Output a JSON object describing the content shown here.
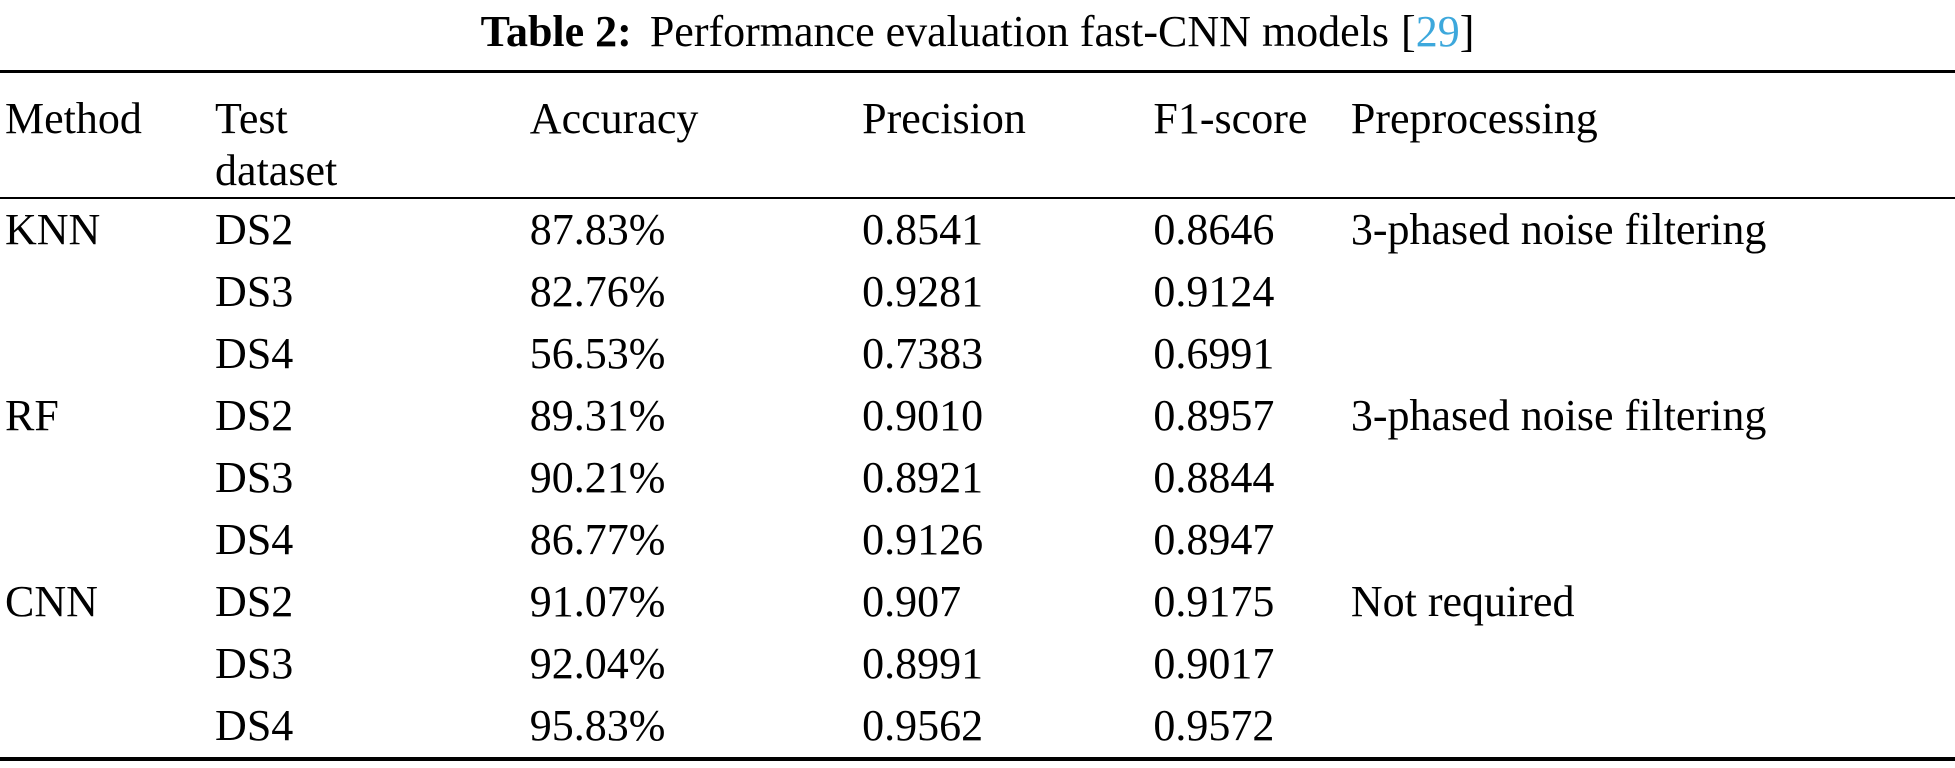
{
  "page": {
    "background": "#ffffff",
    "text_color": "#000000",
    "citation_link_color": "#3da8dc"
  },
  "caption": {
    "label": "Table 2:",
    "text": "Performance evaluation fast-CNN models",
    "citation_bracket_open": "[",
    "citation_number": "29",
    "citation_bracket_close": "]"
  },
  "table": {
    "headers": {
      "method": "Method",
      "dataset_line1": "Test",
      "dataset_line2": "dataset",
      "accuracy": "Accuracy",
      "precision": "Precision",
      "f1": "F1-score",
      "preprocessing": "Preprocessing"
    },
    "rows": [
      {
        "method": "KNN",
        "dataset": "DS2",
        "accuracy": "87.83%",
        "precision": "0.8541",
        "f1": "0.8646",
        "preprocessing": "3-phased noise filtering"
      },
      {
        "method": "",
        "dataset": "DS3",
        "accuracy": "82.76%",
        "precision": "0.9281",
        "f1": "0.9124",
        "preprocessing": ""
      },
      {
        "method": "",
        "dataset": "DS4",
        "accuracy": "56.53%",
        "precision": "0.7383",
        "f1": "0.6991",
        "preprocessing": ""
      },
      {
        "method": "RF",
        "dataset": "DS2",
        "accuracy": "89.31%",
        "precision": "0.9010",
        "f1": "0.8957",
        "preprocessing": "3-phased noise filtering"
      },
      {
        "method": "",
        "dataset": "DS3",
        "accuracy": "90.21%",
        "precision": "0.8921",
        "f1": "0.8844",
        "preprocessing": ""
      },
      {
        "method": "",
        "dataset": "DS4",
        "accuracy": "86.77%",
        "precision": "0.9126",
        "f1": "0.8947",
        "preprocessing": ""
      },
      {
        "method": "CNN",
        "dataset": "DS2",
        "accuracy": "91.07%",
        "precision": "0.907",
        "f1": "0.9175",
        "preprocessing": "Not required"
      },
      {
        "method": "",
        "dataset": "DS3",
        "accuracy": "92.04%",
        "precision": "0.8991",
        "f1": "0.9017",
        "preprocessing": ""
      },
      {
        "method": "",
        "dataset": "DS4",
        "accuracy": "95.83%",
        "precision": "0.9562",
        "f1": "0.9572",
        "preprocessing": ""
      }
    ]
  }
}
